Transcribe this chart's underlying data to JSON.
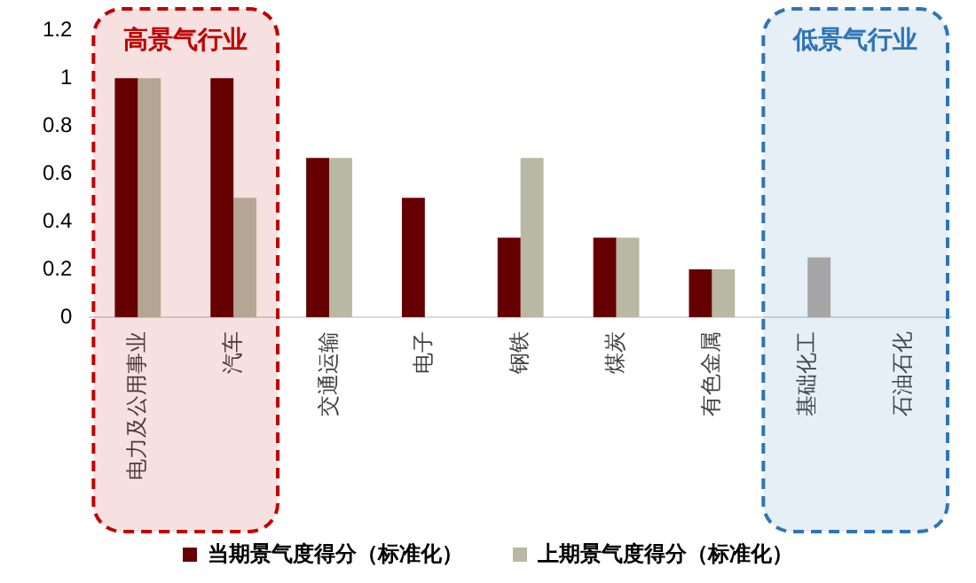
{
  "chart_data": {
    "type": "bar",
    "categories": [
      "电力及公用事业",
      "汽车",
      "交通运输",
      "电子",
      "钢铁",
      "煤炭",
      "有色金属",
      "基础化工",
      "石油石化"
    ],
    "series": [
      {
        "name": "当期景气度得分（标准化）",
        "color": "#660000",
        "values": [
          1,
          1,
          0.667,
          0.5,
          0.333,
          0.333,
          0.2,
          0,
          0
        ]
      },
      {
        "name": "上期景气度得分（标准化）",
        "color": "#b8b8a4",
        "colors": [
          "#b5a595",
          "#b5a595",
          "#b8b8a4",
          "#b8b8a4",
          "#b8b8a4",
          "#b8b8a4",
          "#b8b8a4",
          "#a6a6a6",
          "#a6a6a6"
        ],
        "values": [
          1,
          0.5,
          0.667,
          0,
          0.667,
          0.333,
          0.2,
          0.25,
          0
        ]
      }
    ],
    "ylim": [
      0,
      1.2
    ],
    "yticks": [
      0,
      {
        "value": 0.2,
        "label": "0.2"
      },
      {
        "value": 0.4,
        "label": "0.4"
      },
      {
        "value": 0.6,
        "label": "0.6"
      },
      {
        "value": 0.8,
        "label": "0.8"
      },
      1,
      {
        "value": 1.2,
        "label": "1.2"
      }
    ],
    "grid": false,
    "legend": "bottom",
    "bands": [
      {
        "axis": "x",
        "from": "电力及公用事业",
        "to": "汽车",
        "label": "高景气行业",
        "color": "#c00000"
      },
      {
        "axis": "x",
        "from": "基础化工",
        "to": "石油石化",
        "label": "低景气行业",
        "color": "#2e75b6"
      }
    ]
  }
}
